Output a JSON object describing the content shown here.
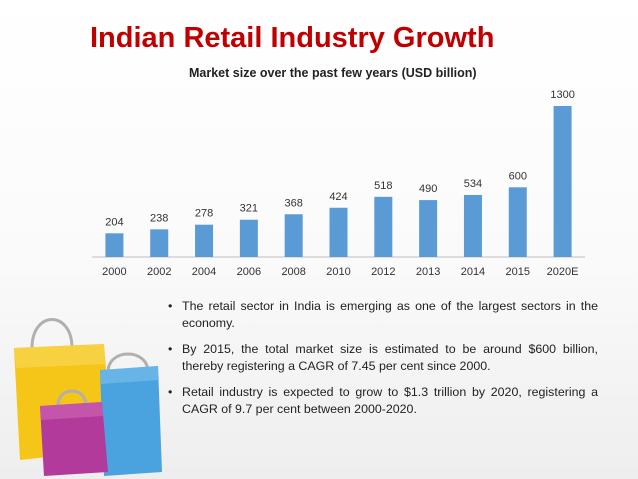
{
  "title": "Indian Retail Industry Growth",
  "chart_data": {
    "type": "bar",
    "title": "Market size over the past few years (USD billion)",
    "categories": [
      "2000",
      "2002",
      "2004",
      "2006",
      "2008",
      "2010",
      "2012",
      "2013",
      "2014",
      "2015",
      "2020E"
    ],
    "values": [
      204,
      238,
      278,
      321,
      368,
      424,
      518,
      490,
      534,
      600,
      1300
    ],
    "xlabel": "",
    "ylabel": "",
    "ylim": [
      0,
      1300
    ],
    "grid": false,
    "bar_color": "#5b9bd5"
  },
  "bullets": [
    "The retail sector in India is emerging as one of the largest sectors in the economy.",
    "By 2015, the total market size is estimated to be around $600 billion, thereby registering a CAGR of 7.45 per cent since 2000.",
    "Retail industry is expected to grow to $1.3 trillion by 2020, registering a CAGR of 9.7 per cent between 2000-2020."
  ],
  "bullet_symbol": "•",
  "colors": {
    "title": "#c00000",
    "bag_yellow": "#f5c518",
    "bag_blue": "#4aa3df",
    "bag_purple": "#b23a9a"
  }
}
